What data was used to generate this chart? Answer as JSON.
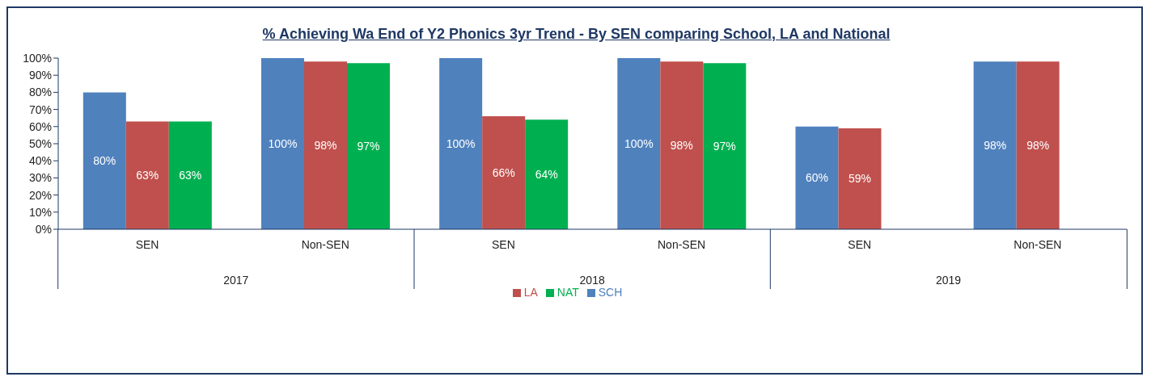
{
  "chart_data": {
    "type": "bar",
    "title": "% Achieving Wa End of Y2 Phonics 3yr Trend - By SEN comparing School, LA and National",
    "categories": [
      "SEN",
      "Non-SEN",
      "SEN",
      "Non-SEN",
      "SEN",
      "Non-SEN"
    ],
    "annotations": [
      "2017",
      "2018",
      "2019"
    ],
    "series": [
      {
        "name": "SCH",
        "color": "#4f81bd",
        "values": [
          80,
          100,
          100,
          100,
          60,
          98
        ],
        "value_labels": [
          "80%",
          "100%",
          "100%",
          "100%",
          "60%",
          "98%"
        ]
      },
      {
        "name": "LA",
        "color": "#c0504d",
        "values": [
          63,
          98,
          66,
          98,
          59,
          98
        ],
        "value_labels": [
          "63%",
          "98%",
          "66%",
          "98%",
          "59%",
          "98%"
        ]
      },
      {
        "name": "NAT",
        "color": "#00b050",
        "values": [
          63,
          97,
          64,
          97,
          null,
          null
        ],
        "value_labels": [
          "63%",
          "97%",
          "64%",
          "97%",
          null,
          null
        ]
      }
    ],
    "ylim": [
      0,
      100
    ],
    "yticks": [
      {
        "value": 0,
        "label": "0%"
      },
      {
        "value": 10,
        "label": "10%"
      },
      {
        "value": 20,
        "label": "20%"
      },
      {
        "value": 30,
        "label": "30%"
      },
      {
        "value": 40,
        "label": "40%"
      },
      {
        "value": 50,
        "label": "50%"
      },
      {
        "value": 60,
        "label": "60%"
      },
      {
        "value": 70,
        "label": "70%"
      },
      {
        "value": 80,
        "label": "80%"
      },
      {
        "value": 90,
        "label": "90%"
      },
      {
        "value": 100,
        "label": "100%"
      }
    ],
    "grid": false,
    "legend": "bottom"
  }
}
